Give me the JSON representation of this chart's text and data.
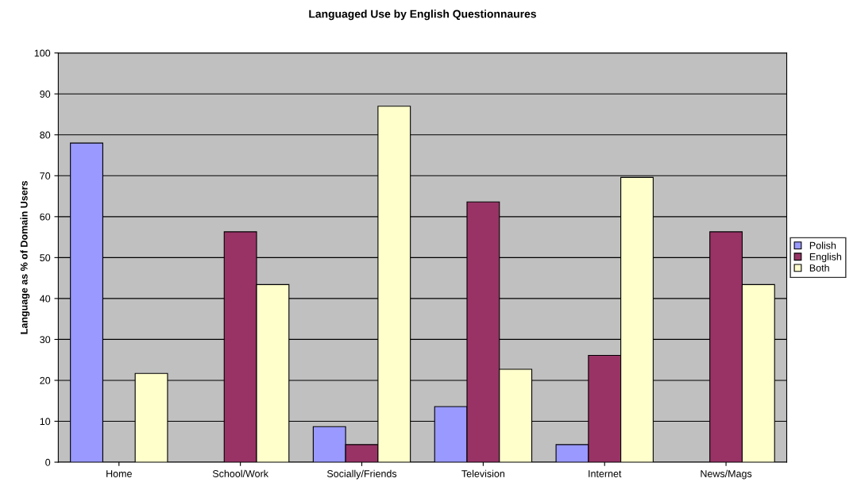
{
  "chart_data": {
    "type": "bar",
    "title": "Languaged Use by English Questionnaures",
    "ylabel": "Language as % of Domain Users",
    "categories": [
      "Home",
      "School/Work",
      "Socially/Friends",
      "Television",
      "Internet",
      "News/Mags"
    ],
    "series": [
      {
        "name": "Polish",
        "color": "#9999ff",
        "values": [
          78,
          null,
          8.7,
          13.6,
          4.3,
          null
        ]
      },
      {
        "name": "English",
        "color": "#993366",
        "values": [
          null,
          56.3,
          4.3,
          63.6,
          26.1,
          56.3
        ]
      },
      {
        "name": "Both",
        "color": "#ffffcc",
        "values": [
          21.7,
          43.4,
          87,
          22.7,
          69.6,
          43.4
        ]
      }
    ],
    "ylim": [
      0,
      100
    ],
    "yticks": [
      0,
      10,
      20,
      30,
      40,
      50,
      60,
      70,
      80,
      90,
      100
    ],
    "grid": "y",
    "legend": "right"
  }
}
